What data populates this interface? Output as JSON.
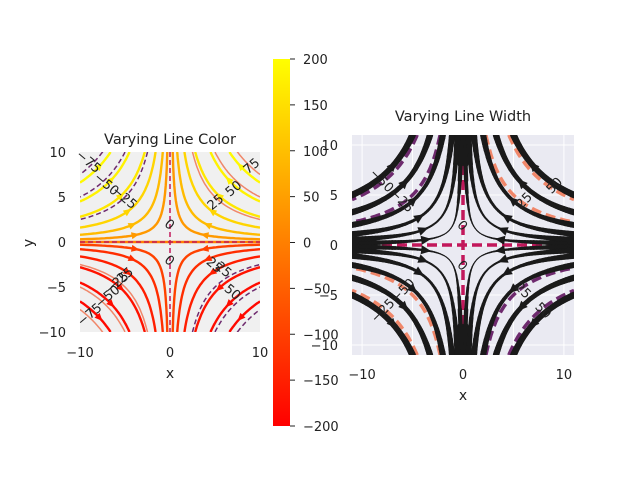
{
  "chart_data": [
    {
      "type": "streamplot",
      "title": "Varying Line Color",
      "xlabel": "x",
      "ylabel": "y",
      "xlim": [
        -10,
        10
      ],
      "ylim": [
        -10,
        10
      ],
      "xticks": [
        "−10",
        "0",
        "10"
      ],
      "yticks": [
        "10",
        "5",
        "0",
        "−5",
        "−10"
      ],
      "field": {
        "u": "-x",
        "v": "y"
      },
      "color_by": "speed",
      "colormap": "autumn",
      "contour_levels": [
        -75,
        -50,
        -25,
        0,
        25,
        50,
        75
      ],
      "contour_labels": [
        "−75",
        "−50",
        "−25",
        "0",
        "25",
        "50",
        "75",
        "−25",
        "25",
        "0",
        "−25",
        "25",
        "−50",
        "50",
        "−75"
      ],
      "background": "#f0f0f0",
      "grid": false
    },
    {
      "type": "colorbar",
      "colormap": "autumn",
      "range": [
        -200,
        200
      ],
      "ticks": [
        "200",
        "150",
        "100",
        "50",
        "0",
        "−50",
        "−100",
        "−150",
        "−200"
      ]
    },
    {
      "type": "streamplot",
      "title": "Varying Line Width",
      "xlabel": "x",
      "ylabel": "",
      "xlim": [
        -11,
        11
      ],
      "ylim": [
        -11,
        11
      ],
      "xticks": [
        "−10",
        "0",
        "10"
      ],
      "yticks": [
        "10",
        "5",
        "0",
        "−5",
        "−10"
      ],
      "field": {
        "u": "-x",
        "v": "y"
      },
      "linewidth_by": "speed",
      "line_color": "#1a1a1a",
      "contour_levels": [
        -50,
        -25,
        0,
        25,
        50
      ],
      "contour_labels": [
        "−50",
        "−25",
        "0",
        "25",
        "50",
        "−50",
        "−25",
        "0",
        "25",
        "50"
      ],
      "background": "#eaeaf2",
      "grid": true
    }
  ],
  "colors": {
    "cmap_top": "#ffff00",
    "cmap_bottom": "#ff0000",
    "contour_neg": "#6e2a6e",
    "contour_pos": "#f0876a",
    "contour_zero": "#c2185b",
    "stream_dark": "#1a1a1a"
  }
}
